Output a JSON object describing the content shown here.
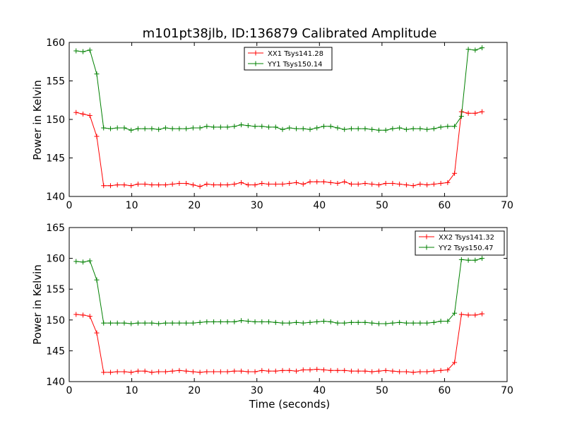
{
  "chart_data": [
    {
      "type": "line",
      "title": "m101pt38jlb, ID:136879 Calibrated Amplitude",
      "xlabel": "",
      "ylabel": "Power in Kelvin",
      "xlim": [
        0,
        70
      ],
      "ylim": [
        140,
        160
      ],
      "xticks": [
        "0",
        "10",
        "20",
        "30",
        "40",
        "50",
        "60",
        "70"
      ],
      "yticks": [
        "140",
        "145",
        "150",
        "155",
        "160"
      ],
      "grid": false,
      "legend_position": "top-center",
      "x": [
        1.1,
        2.2,
        3.3,
        4.4,
        5.5,
        6.6,
        7.7,
        8.8,
        9.9,
        11.0,
        12.1,
        13.2,
        14.3,
        15.4,
        16.5,
        17.6,
        18.7,
        19.8,
        20.9,
        22.0,
        23.1,
        24.2,
        25.3,
        26.4,
        27.5,
        28.6,
        29.7,
        30.8,
        31.9,
        33.0,
        34.1,
        35.2,
        36.3,
        37.4,
        38.5,
        39.6,
        40.7,
        41.8,
        42.9,
        44.0,
        45.1,
        46.2,
        47.3,
        48.4,
        49.5,
        50.6,
        51.7,
        52.8,
        53.9,
        55.0,
        56.1,
        57.2,
        58.3,
        59.4,
        60.5,
        61.6,
        62.7,
        63.8,
        64.9,
        66.0
      ],
      "series": [
        {
          "name": "XX1 Tsys141.28",
          "color": "#ff0000",
          "values": [
            150.9,
            150.7,
            150.5,
            147.8,
            141.4,
            141.4,
            141.5,
            141.5,
            141.4,
            141.6,
            141.6,
            141.5,
            141.5,
            141.5,
            141.6,
            141.7,
            141.7,
            141.5,
            141.3,
            141.6,
            141.5,
            141.5,
            141.5,
            141.6,
            141.8,
            141.5,
            141.5,
            141.7,
            141.6,
            141.6,
            141.6,
            141.7,
            141.8,
            141.6,
            141.9,
            141.9,
            141.9,
            141.8,
            141.7,
            141.9,
            141.6,
            141.6,
            141.7,
            141.6,
            141.5,
            141.7,
            141.7,
            141.6,
            141.5,
            141.4,
            141.6,
            141.5,
            141.6,
            141.7,
            141.8,
            143.0,
            151.0,
            150.8,
            150.8,
            151.0
          ]
        },
        {
          "name": "YY1 Tsys150.14",
          "color": "#008000",
          "values": [
            158.9,
            158.8,
            159.0,
            155.9,
            148.9,
            148.8,
            148.9,
            148.9,
            148.6,
            148.8,
            148.8,
            148.8,
            148.7,
            148.9,
            148.8,
            148.8,
            148.8,
            148.9,
            148.9,
            149.1,
            149.0,
            149.0,
            149.0,
            149.1,
            149.3,
            149.2,
            149.1,
            149.1,
            149.0,
            149.0,
            148.7,
            148.9,
            148.8,
            148.8,
            148.7,
            148.9,
            149.1,
            149.1,
            148.9,
            148.7,
            148.8,
            148.8,
            148.8,
            148.7,
            148.6,
            148.6,
            148.8,
            148.9,
            148.7,
            148.8,
            148.8,
            148.7,
            148.8,
            149.0,
            149.1,
            149.1,
            150.4,
            159.1,
            159.0,
            159.3
          ]
        }
      ]
    },
    {
      "type": "line",
      "title": "",
      "xlabel": "Time (seconds)",
      "ylabel": "Power in Kelvin",
      "xlim": [
        0,
        70
      ],
      "ylim": [
        140,
        165
      ],
      "xticks": [
        "0",
        "10",
        "20",
        "30",
        "40",
        "50",
        "60",
        "70"
      ],
      "yticks": [
        "140",
        "145",
        "150",
        "155",
        "160",
        "165"
      ],
      "grid": false,
      "legend_position": "top-right",
      "x": [
        1.1,
        2.2,
        3.3,
        4.4,
        5.5,
        6.6,
        7.7,
        8.8,
        9.9,
        11.0,
        12.1,
        13.2,
        14.3,
        15.4,
        16.5,
        17.6,
        18.7,
        19.8,
        20.9,
        22.0,
        23.1,
        24.2,
        25.3,
        26.4,
        27.5,
        28.6,
        29.7,
        30.8,
        31.9,
        33.0,
        34.1,
        35.2,
        36.3,
        37.4,
        38.5,
        39.6,
        40.7,
        41.8,
        42.9,
        44.0,
        45.1,
        46.2,
        47.3,
        48.4,
        49.5,
        50.6,
        51.7,
        52.8,
        53.9,
        55.0,
        56.1,
        57.2,
        58.3,
        59.4,
        60.5,
        61.6,
        62.7,
        63.8,
        64.9,
        66.0
      ],
      "series": [
        {
          "name": "XX2 Tsys141.32",
          "color": "#ff0000",
          "values": [
            150.9,
            150.8,
            150.6,
            147.9,
            141.5,
            141.5,
            141.6,
            141.6,
            141.5,
            141.7,
            141.7,
            141.5,
            141.6,
            141.6,
            141.7,
            141.8,
            141.7,
            141.6,
            141.5,
            141.6,
            141.6,
            141.6,
            141.6,
            141.7,
            141.7,
            141.6,
            141.6,
            141.8,
            141.7,
            141.7,
            141.8,
            141.8,
            141.7,
            141.9,
            141.9,
            142.0,
            141.9,
            141.8,
            141.8,
            141.8,
            141.7,
            141.7,
            141.7,
            141.6,
            141.7,
            141.8,
            141.7,
            141.6,
            141.6,
            141.5,
            141.6,
            141.6,
            141.7,
            141.8,
            141.9,
            143.1,
            150.9,
            150.8,
            150.8,
            151.0
          ]
        },
        {
          "name": "YY2 Tsys150.47",
          "color": "#008000",
          "values": [
            159.5,
            159.4,
            159.6,
            156.5,
            149.5,
            149.5,
            149.5,
            149.5,
            149.4,
            149.5,
            149.5,
            149.5,
            149.4,
            149.5,
            149.5,
            149.5,
            149.5,
            149.5,
            149.6,
            149.7,
            149.7,
            149.7,
            149.7,
            149.7,
            149.9,
            149.8,
            149.7,
            149.7,
            149.7,
            149.6,
            149.5,
            149.5,
            149.6,
            149.5,
            149.6,
            149.7,
            149.8,
            149.7,
            149.5,
            149.5,
            149.6,
            149.6,
            149.6,
            149.5,
            149.4,
            149.4,
            149.5,
            149.6,
            149.5,
            149.5,
            149.5,
            149.5,
            149.6,
            149.8,
            149.8,
            151.1,
            159.8,
            159.7,
            159.7,
            160.0
          ]
        }
      ]
    }
  ]
}
